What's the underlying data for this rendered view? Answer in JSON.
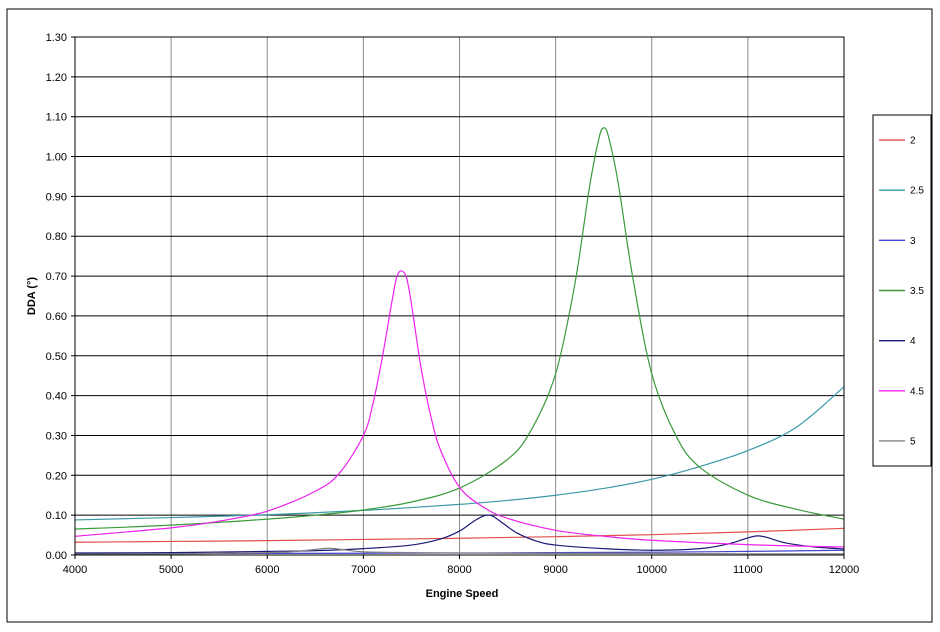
{
  "chart_data": {
    "type": "line",
    "title": "",
    "xlabel": "Engine Speed",
    "ylabel": "DDA (°)",
    "xlim": [
      4000,
      12000
    ],
    "ylim": [
      0,
      1.3
    ],
    "grid": true,
    "legend_position": "right",
    "x_ticks": [
      4000,
      5000,
      6000,
      7000,
      8000,
      9000,
      10000,
      11000,
      12000
    ],
    "x_tick_labels": [
      "4000",
      "5000",
      "6000",
      "7000",
      "8000",
      "9000",
      "10000",
      "11000",
      "12000"
    ],
    "y_ticks": [
      0,
      0.1,
      0.2,
      0.3,
      0.4,
      0.5,
      0.6,
      0.7,
      0.8,
      0.9,
      1.0,
      1.1,
      1.2,
      1.3
    ],
    "y_tick_labels": [
      "0.00",
      "0.10",
      "0.20",
      "0.30",
      "0.40",
      "0.50",
      "0.60",
      "0.70",
      "0.80",
      "0.90",
      "1.00",
      "1.10",
      "1.20",
      "1.30"
    ],
    "series": [
      {
        "name": "2",
        "color": "#e05050",
        "x": [
          4000,
          5000,
          6000,
          7000,
          8000,
          9000,
          10000,
          11000,
          12000
        ],
        "y": [
          0.032,
          0.034,
          0.036,
          0.039,
          0.042,
          0.046,
          0.051,
          0.058,
          0.067
        ]
      },
      {
        "name": "2.5",
        "color": "#3a9aa8",
        "x": [
          4000,
          5000,
          6000,
          7000,
          7500,
          8000,
          8500,
          9000,
          9500,
          10000,
          10500,
          11000,
          11500,
          12000
        ],
        "y": [
          0.088,
          0.094,
          0.101,
          0.112,
          0.119,
          0.127,
          0.137,
          0.15,
          0.167,
          0.19,
          0.222,
          0.262,
          0.32,
          0.422
        ]
      },
      {
        "name": "3",
        "color": "#4444cc",
        "x": [
          4000,
          6000,
          8000,
          10000,
          11000,
          12000
        ],
        "y": [
          0.003,
          0.004,
          0.005,
          0.007,
          0.009,
          0.012
        ]
      },
      {
        "name": "3.5",
        "color": "#3a9a3a",
        "x": [
          4000,
          5000,
          6000,
          6500,
          7000,
          7500,
          8000,
          8500,
          8750,
          9000,
          9200,
          9350,
          9450,
          9500,
          9550,
          9650,
          9800,
          10000,
          10250,
          10500,
          11000,
          11500,
          12000
        ],
        "y": [
          0.065,
          0.075,
          0.09,
          0.1,
          0.113,
          0.133,
          0.168,
          0.24,
          0.315,
          0.455,
          0.68,
          0.92,
          1.045,
          1.072,
          1.05,
          0.935,
          0.7,
          0.455,
          0.3,
          0.22,
          0.15,
          0.115,
          0.09
        ]
      },
      {
        "name": "4",
        "color": "#1c1c78",
        "x": [
          4000,
          5000,
          6000,
          6500,
          7000,
          7500,
          7800,
          8000,
          8150,
          8250,
          8300,
          8350,
          8450,
          8600,
          8800,
          9000,
          9500,
          10000,
          10500,
          10800,
          11000,
          11100,
          11200,
          11400,
          11700,
          12000
        ],
        "y": [
          0.005,
          0.006,
          0.009,
          0.011,
          0.016,
          0.025,
          0.04,
          0.06,
          0.085,
          0.098,
          0.1,
          0.097,
          0.08,
          0.055,
          0.035,
          0.025,
          0.016,
          0.012,
          0.016,
          0.028,
          0.043,
          0.048,
          0.044,
          0.03,
          0.02,
          0.015
        ]
      },
      {
        "name": "4.5",
        "color": "#ee22ee",
        "x": [
          4000,
          5000,
          5500,
          6000,
          6500,
          6750,
          7000,
          7100,
          7200,
          7300,
          7350,
          7400,
          7450,
          7500,
          7600,
          7700,
          7800,
          8000,
          8250,
          8500,
          9000,
          9500,
          10000,
          11000,
          12000
        ],
        "y": [
          0.047,
          0.068,
          0.085,
          0.11,
          0.16,
          0.205,
          0.3,
          0.38,
          0.5,
          0.64,
          0.7,
          0.713,
          0.695,
          0.63,
          0.47,
          0.35,
          0.265,
          0.17,
          0.12,
          0.092,
          0.062,
          0.047,
          0.037,
          0.026,
          0.02
        ]
      },
      {
        "name": "5",
        "color": "#808080",
        "x": [
          4000,
          5000,
          6000,
          6300,
          6500,
          6650,
          6800,
          7000,
          7500,
          8000,
          9000,
          10000,
          11000,
          12000
        ],
        "y": [
          0.002,
          0.003,
          0.006,
          0.009,
          0.014,
          0.017,
          0.013,
          0.008,
          0.006,
          0.005,
          0.004,
          0.004,
          0.003,
          0.003
        ]
      }
    ]
  }
}
